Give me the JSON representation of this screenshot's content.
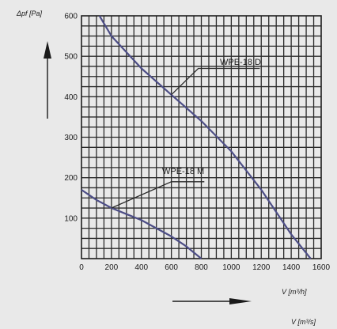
{
  "chart_data": {
    "type": "line",
    "title": "",
    "ylabel": "Δpf [Pa]",
    "xlabel": "V [m³/h]",
    "xlabel_secondary": "V [m³/s]",
    "xlim": [
      0,
      1600
    ],
    "ylim": [
      0,
      600
    ],
    "x_ticks": [
      "0",
      "200",
      "400",
      "600",
      "800",
      "1000",
      "1200",
      "1400",
      "1600"
    ],
    "y_ticks": [
      "100",
      "200",
      "300",
      "400",
      "500",
      "600"
    ],
    "grid": true,
    "series": [
      {
        "name": "WPE-18 D",
        "points": [
          [
            120,
            600
          ],
          [
            200,
            550
          ],
          [
            400,
            470
          ],
          [
            600,
            405
          ],
          [
            800,
            340
          ],
          [
            1000,
            265
          ],
          [
            1200,
            170
          ],
          [
            1400,
            60
          ],
          [
            1530,
            0
          ]
        ]
      },
      {
        "name": "WPE-18 M",
        "points": [
          [
            0,
            170
          ],
          [
            100,
            145
          ],
          [
            200,
            125
          ],
          [
            300,
            110
          ],
          [
            400,
            95
          ],
          [
            500,
            75
          ],
          [
            600,
            55
          ],
          [
            700,
            30
          ],
          [
            800,
            0
          ]
        ]
      }
    ],
    "series_label_colors": [
      "#4d4e86",
      "#4d4e86"
    ]
  }
}
